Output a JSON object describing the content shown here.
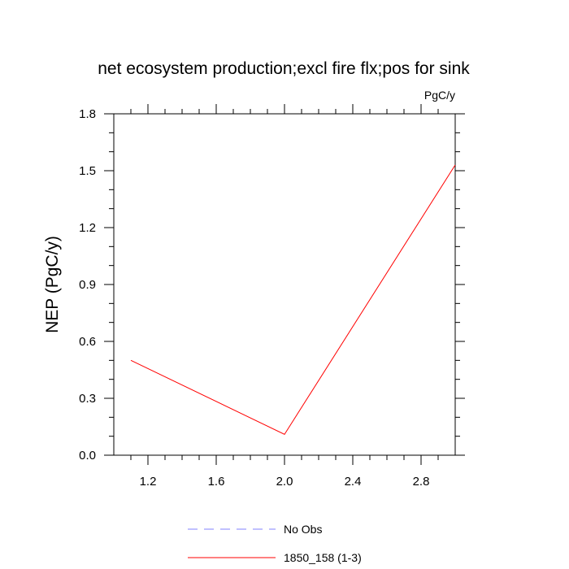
{
  "chart_data": {
    "type": "line",
    "title": "net ecosystem production;excl fire flx;pos for sink",
    "units": "PgC/y",
    "ylabel": "NEP  (PgC/y)",
    "xlabel": "",
    "xlim": [
      1.0,
      3.0
    ],
    "ylim": [
      0.0,
      1.8
    ],
    "x_ticks": [
      1.2,
      1.6,
      2.0,
      2.4,
      2.8
    ],
    "x_tick_labels": [
      "1.2",
      "1.6",
      "2.0",
      "2.4",
      "2.8"
    ],
    "y_ticks": [
      0.0,
      0.3,
      0.6,
      0.9,
      1.2,
      1.5,
      1.8
    ],
    "y_tick_labels": [
      "0.0",
      "0.3",
      "0.6",
      "0.9",
      "1.2",
      "1.5",
      "1.8"
    ],
    "grid": false,
    "legend_position": "bottom",
    "series": [
      {
        "name": "No Obs",
        "color": "#8080ff",
        "style": "dashed",
        "x": [],
        "y": []
      },
      {
        "name": "1850_158 (1-3)",
        "color": "#ff0000",
        "style": "solid",
        "x": [
          1.1,
          2.0,
          3.0
        ],
        "y": [
          0.5,
          0.11,
          1.53
        ]
      }
    ]
  }
}
